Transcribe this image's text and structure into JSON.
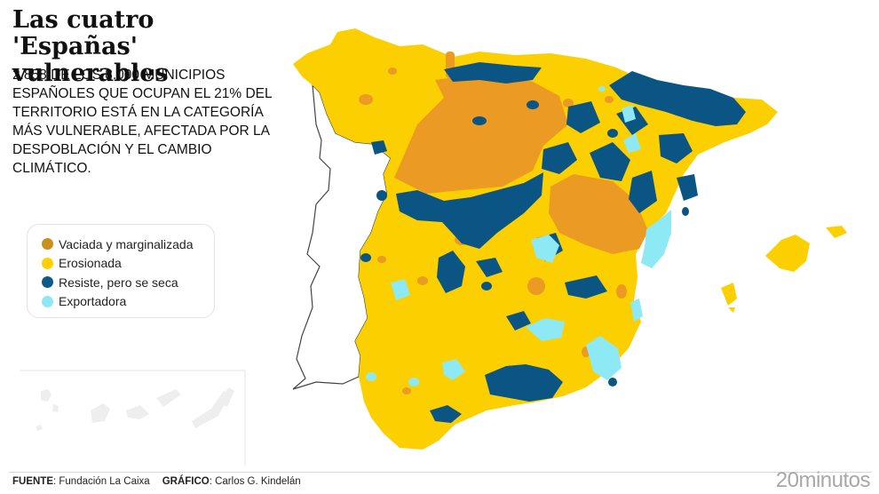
{
  "header": {
    "title": "Las cuatro 'Españas' vulnerables",
    "subtitle": "2.858 de los 8.000 municipios españoles que ocupan el 21% del territorio está en la categoría más vulnerable, afectada por la despoblación y el cambio climático."
  },
  "legend": {
    "items": [
      {
        "label": "Vaciada y marginalizada",
        "color": "#c8901c"
      },
      {
        "label": "Erosionada",
        "color": "#ffd000"
      },
      {
        "label": "Resiste, pero se seca",
        "color": "#0d5a8a"
      },
      {
        "label": "Exportadora",
        "color": "#8ee8f4"
      }
    ]
  },
  "map_colors": {
    "erosionada": "#fccf00",
    "vaciada": "#eb9a24",
    "resiste": "#0b5585",
    "exportadora": "#8deaf5",
    "portugal_outline": "#444444",
    "canarias": "#eeeeee"
  },
  "footer": {
    "source_label": "FUENTE",
    "source_value": ": Fundación La Caixa",
    "graphic_label": "GRÁFICO",
    "graphic_value": ": Carlos G. Kindelán",
    "logo": "20minutos"
  }
}
